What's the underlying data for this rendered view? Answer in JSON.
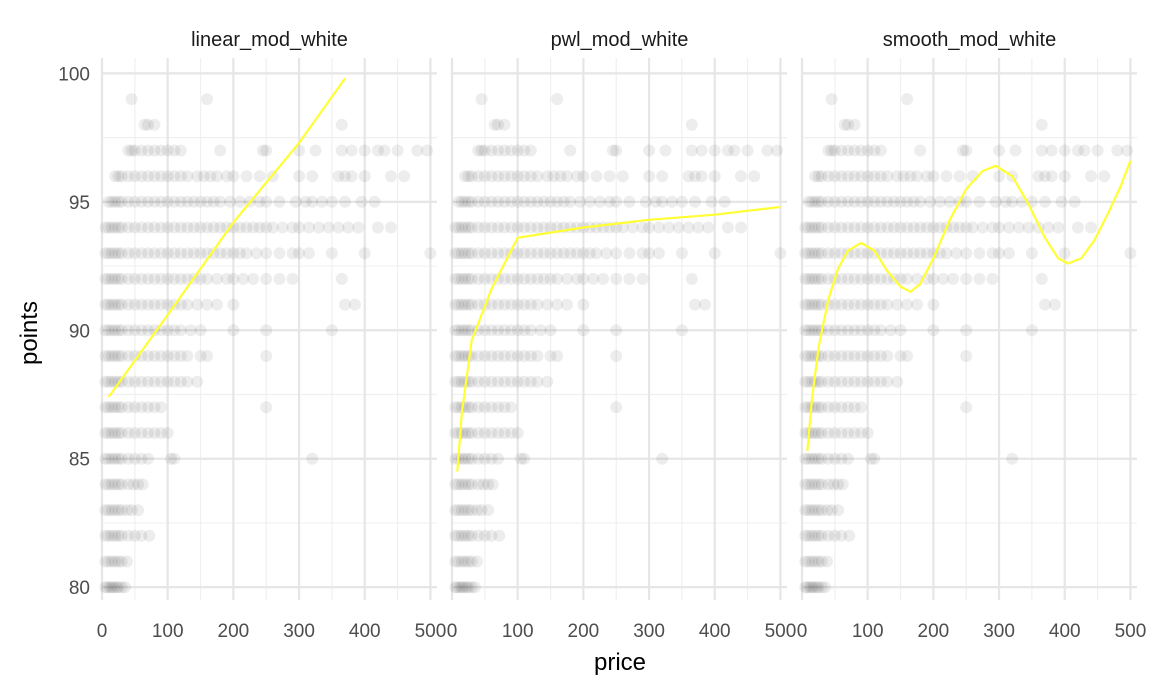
{
  "chart_data": {
    "type": "scatter",
    "xlabel": "price",
    "ylabel": "points",
    "xlim": [
      0,
      510
    ],
    "ylim": [
      79.5,
      100.6
    ],
    "x_ticks": [
      0,
      100,
      200,
      300,
      400,
      500
    ],
    "y_ticks": [
      80,
      85,
      90,
      95,
      100
    ],
    "grid": true,
    "point_color": "#000000",
    "point_opacity": 0.07,
    "line_color": "#ffff33",
    "points": [
      [
        5,
        80
      ],
      [
        8,
        80
      ],
      [
        12,
        80
      ],
      [
        15,
        80
      ],
      [
        18,
        80
      ],
      [
        22,
        80
      ],
      [
        25,
        80
      ],
      [
        30,
        80
      ],
      [
        35,
        80
      ],
      [
        5,
        81
      ],
      [
        10,
        81
      ],
      [
        15,
        81
      ],
      [
        20,
        81
      ],
      [
        25,
        81
      ],
      [
        30,
        81
      ],
      [
        38,
        81
      ],
      [
        5,
        82
      ],
      [
        10,
        82
      ],
      [
        15,
        82
      ],
      [
        20,
        82
      ],
      [
        25,
        82
      ],
      [
        30,
        82
      ],
      [
        40,
        82
      ],
      [
        50,
        82
      ],
      [
        60,
        82
      ],
      [
        72,
        82
      ],
      [
        5,
        83
      ],
      [
        10,
        83
      ],
      [
        15,
        83
      ],
      [
        20,
        83
      ],
      [
        25,
        83
      ],
      [
        30,
        83
      ],
      [
        38,
        83
      ],
      [
        45,
        83
      ],
      [
        55,
        83
      ],
      [
        5,
        84
      ],
      [
        10,
        84
      ],
      [
        15,
        84
      ],
      [
        20,
        84
      ],
      [
        25,
        84
      ],
      [
        30,
        84
      ],
      [
        40,
        84
      ],
      [
        48,
        84
      ],
      [
        55,
        84
      ],
      [
        62,
        84
      ],
      [
        5,
        85
      ],
      [
        10,
        85
      ],
      [
        15,
        85
      ],
      [
        20,
        85
      ],
      [
        25,
        85
      ],
      [
        30,
        85
      ],
      [
        40,
        85
      ],
      [
        50,
        85
      ],
      [
        60,
        85
      ],
      [
        70,
        85
      ],
      [
        105,
        85
      ],
      [
        110,
        85
      ],
      [
        320,
        85
      ],
      [
        5,
        86
      ],
      [
        10,
        86
      ],
      [
        15,
        86
      ],
      [
        20,
        86
      ],
      [
        25,
        86
      ],
      [
        30,
        86
      ],
      [
        40,
        86
      ],
      [
        50,
        86
      ],
      [
        60,
        86
      ],
      [
        70,
        86
      ],
      [
        80,
        86
      ],
      [
        90,
        86
      ],
      [
        100,
        86
      ],
      [
        5,
        87
      ],
      [
        10,
        87
      ],
      [
        15,
        87
      ],
      [
        20,
        87
      ],
      [
        25,
        87
      ],
      [
        30,
        87
      ],
      [
        40,
        87
      ],
      [
        50,
        87
      ],
      [
        60,
        87
      ],
      [
        70,
        87
      ],
      [
        80,
        87
      ],
      [
        90,
        87
      ],
      [
        250,
        87
      ],
      [
        5,
        88
      ],
      [
        10,
        88
      ],
      [
        15,
        88
      ],
      [
        20,
        88
      ],
      [
        25,
        88
      ],
      [
        30,
        88
      ],
      [
        40,
        88
      ],
      [
        50,
        88
      ],
      [
        60,
        88
      ],
      [
        70,
        88
      ],
      [
        80,
        88
      ],
      [
        90,
        88
      ],
      [
        100,
        88
      ],
      [
        110,
        88
      ],
      [
        120,
        88
      ],
      [
        130,
        88
      ],
      [
        145,
        88
      ],
      [
        5,
        89
      ],
      [
        10,
        89
      ],
      [
        15,
        89
      ],
      [
        20,
        89
      ],
      [
        25,
        89
      ],
      [
        30,
        89
      ],
      [
        40,
        89
      ],
      [
        50,
        89
      ],
      [
        60,
        89
      ],
      [
        70,
        89
      ],
      [
        80,
        89
      ],
      [
        90,
        89
      ],
      [
        100,
        89
      ],
      [
        110,
        89
      ],
      [
        120,
        89
      ],
      [
        130,
        89
      ],
      [
        150,
        89
      ],
      [
        160,
        89
      ],
      [
        250,
        89
      ],
      [
        5,
        90
      ],
      [
        10,
        90
      ],
      [
        15,
        90
      ],
      [
        20,
        90
      ],
      [
        25,
        90
      ],
      [
        30,
        90
      ],
      [
        40,
        90
      ],
      [
        50,
        90
      ],
      [
        60,
        90
      ],
      [
        70,
        90
      ],
      [
        80,
        90
      ],
      [
        90,
        90
      ],
      [
        100,
        90
      ],
      [
        110,
        90
      ],
      [
        120,
        90
      ],
      [
        135,
        90
      ],
      [
        150,
        90
      ],
      [
        200,
        90
      ],
      [
        250,
        90
      ],
      [
        350,
        90
      ],
      [
        5,
        91
      ],
      [
        10,
        91
      ],
      [
        15,
        91
      ],
      [
        20,
        91
      ],
      [
        25,
        91
      ],
      [
        30,
        91
      ],
      [
        40,
        91
      ],
      [
        50,
        91
      ],
      [
        60,
        91
      ],
      [
        70,
        91
      ],
      [
        80,
        91
      ],
      [
        90,
        91
      ],
      [
        100,
        91
      ],
      [
        110,
        91
      ],
      [
        120,
        91
      ],
      [
        130,
        91
      ],
      [
        145,
        91
      ],
      [
        160,
        91
      ],
      [
        175,
        91
      ],
      [
        200,
        91
      ],
      [
        370,
        91
      ],
      [
        385,
        91
      ],
      [
        5,
        92
      ],
      [
        10,
        92
      ],
      [
        15,
        92
      ],
      [
        20,
        92
      ],
      [
        25,
        92
      ],
      [
        30,
        92
      ],
      [
        40,
        92
      ],
      [
        50,
        92
      ],
      [
        60,
        92
      ],
      [
        70,
        92
      ],
      [
        80,
        92
      ],
      [
        90,
        92
      ],
      [
        100,
        92
      ],
      [
        110,
        92
      ],
      [
        120,
        92
      ],
      [
        130,
        92
      ],
      [
        140,
        92
      ],
      [
        150,
        92
      ],
      [
        160,
        92
      ],
      [
        175,
        92
      ],
      [
        190,
        92
      ],
      [
        200,
        92
      ],
      [
        215,
        92
      ],
      [
        230,
        92
      ],
      [
        250,
        92
      ],
      [
        270,
        92
      ],
      [
        290,
        92
      ],
      [
        365,
        92
      ],
      [
        5,
        93
      ],
      [
        10,
        93
      ],
      [
        15,
        93
      ],
      [
        20,
        93
      ],
      [
        25,
        93
      ],
      [
        30,
        93
      ],
      [
        40,
        93
      ],
      [
        50,
        93
      ],
      [
        60,
        93
      ],
      [
        70,
        93
      ],
      [
        80,
        93
      ],
      [
        90,
        93
      ],
      [
        100,
        93
      ],
      [
        110,
        93
      ],
      [
        120,
        93
      ],
      [
        130,
        93
      ],
      [
        140,
        93
      ],
      [
        150,
        93
      ],
      [
        160,
        93
      ],
      [
        170,
        93
      ],
      [
        180,
        93
      ],
      [
        190,
        93
      ],
      [
        200,
        93
      ],
      [
        210,
        93
      ],
      [
        220,
        93
      ],
      [
        235,
        93
      ],
      [
        250,
        93
      ],
      [
        270,
        93
      ],
      [
        290,
        93
      ],
      [
        300,
        93
      ],
      [
        315,
        93
      ],
      [
        350,
        93
      ],
      [
        400,
        93
      ],
      [
        500,
        93
      ],
      [
        5,
        94
      ],
      [
        10,
        94
      ],
      [
        15,
        94
      ],
      [
        20,
        94
      ],
      [
        25,
        94
      ],
      [
        30,
        94
      ],
      [
        40,
        94
      ],
      [
        50,
        94
      ],
      [
        60,
        94
      ],
      [
        70,
        94
      ],
      [
        80,
        94
      ],
      [
        90,
        94
      ],
      [
        100,
        94
      ],
      [
        110,
        94
      ],
      [
        120,
        94
      ],
      [
        130,
        94
      ],
      [
        140,
        94
      ],
      [
        150,
        94
      ],
      [
        160,
        94
      ],
      [
        170,
        94
      ],
      [
        180,
        94
      ],
      [
        190,
        94
      ],
      [
        200,
        94
      ],
      [
        210,
        94
      ],
      [
        220,
        94
      ],
      [
        230,
        94
      ],
      [
        240,
        94
      ],
      [
        250,
        94
      ],
      [
        260,
        94
      ],
      [
        275,
        94
      ],
      [
        290,
        94
      ],
      [
        300,
        94
      ],
      [
        315,
        94
      ],
      [
        330,
        94
      ],
      [
        345,
        94
      ],
      [
        360,
        94
      ],
      [
        375,
        94
      ],
      [
        390,
        94
      ],
      [
        420,
        94
      ],
      [
        440,
        94
      ],
      [
        10,
        95
      ],
      [
        15,
        95
      ],
      [
        20,
        95
      ],
      [
        25,
        95
      ],
      [
        30,
        95
      ],
      [
        40,
        95
      ],
      [
        50,
        95
      ],
      [
        60,
        95
      ],
      [
        70,
        95
      ],
      [
        80,
        95
      ],
      [
        90,
        95
      ],
      [
        100,
        95
      ],
      [
        110,
        95
      ],
      [
        120,
        95
      ],
      [
        130,
        95
      ],
      [
        140,
        95
      ],
      [
        150,
        95
      ],
      [
        160,
        95
      ],
      [
        170,
        95
      ],
      [
        180,
        95
      ],
      [
        195,
        95
      ],
      [
        210,
        95
      ],
      [
        225,
        95
      ],
      [
        240,
        95
      ],
      [
        250,
        95
      ],
      [
        270,
        95
      ],
      [
        295,
        95
      ],
      [
        310,
        95
      ],
      [
        320,
        95
      ],
      [
        335,
        95
      ],
      [
        350,
        95
      ],
      [
        370,
        95
      ],
      [
        395,
        95
      ],
      [
        415,
        95
      ],
      [
        20,
        96
      ],
      [
        25,
        96
      ],
      [
        30,
        96
      ],
      [
        40,
        96
      ],
      [
        50,
        96
      ],
      [
        60,
        96
      ],
      [
        70,
        96
      ],
      [
        80,
        96
      ],
      [
        90,
        96
      ],
      [
        100,
        96
      ],
      [
        110,
        96
      ],
      [
        120,
        96
      ],
      [
        130,
        96
      ],
      [
        145,
        96
      ],
      [
        155,
        96
      ],
      [
        165,
        96
      ],
      [
        175,
        96
      ],
      [
        190,
        96
      ],
      [
        200,
        96
      ],
      [
        220,
        96
      ],
      [
        240,
        96
      ],
      [
        260,
        96
      ],
      [
        300,
        96
      ],
      [
        320,
        96
      ],
      [
        360,
        96
      ],
      [
        370,
        96
      ],
      [
        380,
        96
      ],
      [
        400,
        96
      ],
      [
        440,
        96
      ],
      [
        460,
        96
      ],
      [
        40,
        97
      ],
      [
        45,
        97
      ],
      [
        50,
        97
      ],
      [
        60,
        97
      ],
      [
        70,
        97
      ],
      [
        80,
        97
      ],
      [
        90,
        97
      ],
      [
        100,
        97
      ],
      [
        110,
        97
      ],
      [
        120,
        97
      ],
      [
        180,
        97
      ],
      [
        245,
        97
      ],
      [
        250,
        97
      ],
      [
        300,
        97
      ],
      [
        325,
        97
      ],
      [
        365,
        97
      ],
      [
        380,
        97
      ],
      [
        400,
        97
      ],
      [
        420,
        97
      ],
      [
        430,
        97
      ],
      [
        450,
        97
      ],
      [
        480,
        97
      ],
      [
        495,
        97
      ],
      [
        65,
        98
      ],
      [
        70,
        98
      ],
      [
        80,
        98
      ],
      [
        365,
        98
      ],
      [
        45,
        99
      ],
      [
        160,
        99
      ]
    ],
    "facets": [
      {
        "name": "linear_mod_white",
        "fit": [
          [
            10,
            87.4
          ],
          [
            100,
            90.6
          ],
          [
            200,
            94.2
          ],
          [
            300,
            97.3
          ],
          [
            370,
            99.8
          ]
        ]
      },
      {
        "name": "pwl_mod_white",
        "fit": [
          [
            8,
            84.5
          ],
          [
            15,
            86.8
          ],
          [
            30,
            89.6
          ],
          [
            60,
            91.6
          ],
          [
            100,
            93.6
          ],
          [
            200,
            94.0
          ],
          [
            300,
            94.3
          ],
          [
            400,
            94.5
          ],
          [
            500,
            94.8
          ]
        ]
      },
      {
        "name": "smooth_mod_white",
        "fit": [
          [
            8,
            85.3
          ],
          [
            15,
            87.3
          ],
          [
            25,
            89.3
          ],
          [
            40,
            91.2
          ],
          [
            55,
            92.4
          ],
          [
            70,
            93.1
          ],
          [
            90,
            93.4
          ],
          [
            110,
            93.1
          ],
          [
            130,
            92.3
          ],
          [
            150,
            91.7
          ],
          [
            165,
            91.5
          ],
          [
            180,
            91.8
          ],
          [
            200,
            92.8
          ],
          [
            225,
            94.3
          ],
          [
            250,
            95.5
          ],
          [
            275,
            96.2
          ],
          [
            295,
            96.4
          ],
          [
            320,
            96.0
          ],
          [
            345,
            94.9
          ],
          [
            370,
            93.6
          ],
          [
            390,
            92.8
          ],
          [
            405,
            92.6
          ],
          [
            425,
            92.8
          ],
          [
            445,
            93.5
          ],
          [
            465,
            94.5
          ],
          [
            485,
            95.6
          ],
          [
            500,
            96.6
          ]
        ]
      }
    ]
  }
}
